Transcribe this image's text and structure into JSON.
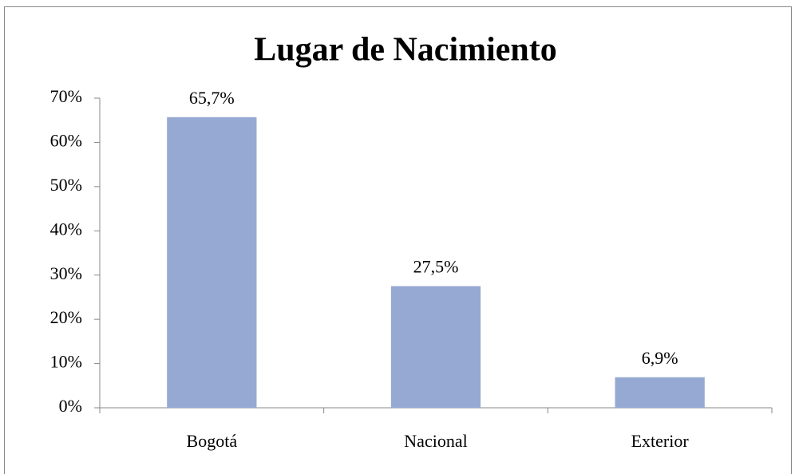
{
  "chart_data": {
    "type": "bar",
    "title": "Lugar de Nacimiento",
    "categories": [
      "Bogotá",
      "Nacional",
      "Exterior"
    ],
    "values": [
      65.7,
      27.5,
      6.9
    ],
    "value_labels": [
      "65,7%",
      "27,5%",
      "6,9%"
    ],
    "color": "#95a9d3",
    "ylim": [
      0,
      70
    ],
    "yticks": [
      {
        "value": 0,
        "label": "0%"
      },
      {
        "value": 10,
        "label": "10%"
      },
      {
        "value": 20,
        "label": "20%"
      },
      {
        "value": 30,
        "label": "30%"
      },
      {
        "value": 40,
        "label": "40%"
      },
      {
        "value": 50,
        "label": "50%"
      },
      {
        "value": 60,
        "label": "60%"
      },
      {
        "value": 70,
        "label": "70%"
      }
    ],
    "grid": false
  }
}
